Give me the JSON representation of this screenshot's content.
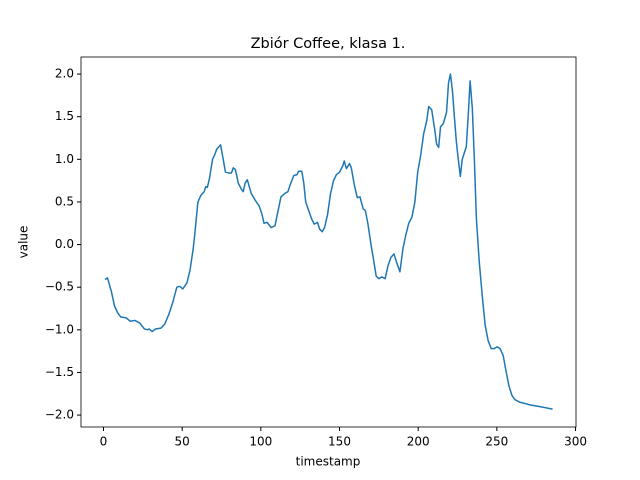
{
  "chart_data": {
    "type": "line",
    "title": "Zbiór Coffee, klasa 1.",
    "x_label": "timestamp",
    "y_label": "value",
    "x": [
      1,
      2.5,
      5,
      7,
      9,
      11,
      14.5,
      17,
      20,
      23,
      26,
      28,
      29,
      31,
      33,
      36.5,
      39,
      41.5,
      44,
      46.6,
      48.5,
      50.4,
      53,
      55,
      57,
      58,
      60,
      62,
      64,
      65,
      66,
      67.4,
      69.3,
      70.6,
      72,
      74.4,
      75.6,
      77.5,
      79.4,
      81.3,
      82.5,
      83.8,
      85.7,
      87.6,
      88.8,
      90,
      91.4,
      93.9,
      96.4,
      99,
      100.8,
      102,
      104,
      106.5,
      109,
      111,
      112.8,
      115.3,
      117.2,
      119,
      121,
      123,
      124,
      126,
      127.3,
      128.5,
      130.4,
      132.3,
      134,
      136,
      137.4,
      139,
      140.5,
      142.4,
      144.3,
      146.2,
      148,
      150,
      152,
      153,
      154.4,
      156.3,
      157.5,
      159.4,
      161.3,
      163,
      165,
      166.4,
      168,
      170,
      171.4,
      173.3,
      175,
      177,
      179,
      180.8,
      182.7,
      184.6,
      186.5,
      188.4,
      190.3,
      192,
      194,
      196,
      197.9,
      199.7,
      201.6,
      203.5,
      205.4,
      206.7,
      208.6,
      210.5,
      211.7,
      213,
      214.2,
      216,
      218,
      219.3,
      220.5,
      221.8,
      223,
      224.3,
      225.6,
      226.8,
      228,
      229.4,
      230.6,
      231.9,
      233,
      234.4,
      235.7,
      237,
      238.8,
      240.7,
      242.6,
      244.5,
      246.4,
      248.3,
      250.2,
      252,
      254,
      255.8,
      257.7,
      259.6,
      261.5,
      264.7,
      271,
      277,
      285.4
    ],
    "series": [
      {
        "color": "#1f77b4",
        "values": [
          -0.41,
          -0.39,
          -0.55,
          -0.72,
          -0.8,
          -0.85,
          -0.86,
          -0.9,
          -0.89,
          -0.92,
          -0.99,
          -1.0,
          -0.99,
          -1.02,
          -0.99,
          -0.98,
          -0.93,
          -0.82,
          -0.68,
          -0.5,
          -0.49,
          -0.52,
          -0.45,
          -0.3,
          -0.05,
          0.12,
          0.5,
          0.58,
          0.62,
          0.68,
          0.67,
          0.78,
          1.0,
          1.05,
          1.12,
          1.17,
          1.05,
          0.85,
          0.84,
          0.84,
          0.9,
          0.88,
          0.72,
          0.65,
          0.62,
          0.72,
          0.76,
          0.6,
          0.52,
          0.45,
          0.35,
          0.25,
          0.26,
          0.2,
          0.22,
          0.4,
          0.56,
          0.6,
          0.62,
          0.72,
          0.81,
          0.82,
          0.86,
          0.86,
          0.72,
          0.5,
          0.4,
          0.3,
          0.24,
          0.26,
          0.18,
          0.15,
          0.2,
          0.35,
          0.6,
          0.75,
          0.82,
          0.85,
          0.92,
          0.98,
          0.89,
          0.95,
          0.9,
          0.7,
          0.55,
          0.56,
          0.42,
          0.4,
          0.25,
          0.0,
          -0.15,
          -0.37,
          -0.4,
          -0.38,
          -0.4,
          -0.25,
          -0.15,
          -0.11,
          -0.22,
          -0.32,
          -0.05,
          0.1,
          0.25,
          0.32,
          0.5,
          0.85,
          1.05,
          1.3,
          1.45,
          1.62,
          1.58,
          1.35,
          1.18,
          1.14,
          1.38,
          1.42,
          1.55,
          1.9,
          2.0,
          1.8,
          1.5,
          1.2,
          0.98,
          0.8,
          1.0,
          1.08,
          1.15,
          1.55,
          1.92,
          1.6,
          1.0,
          0.3,
          -0.2,
          -0.6,
          -0.95,
          -1.13,
          -1.22,
          -1.22,
          -1.2,
          -1.22,
          -1.3,
          -1.48,
          -1.66,
          -1.77,
          -1.82,
          -1.85,
          -1.88,
          -1.9,
          -1.93
        ]
      }
    ],
    "xlim": [
      -14.3,
      300.3
    ],
    "ylim": [
      -2.14,
      2.2
    ],
    "xticks": [
      0,
      50,
      100,
      150,
      200,
      250,
      300
    ],
    "yticks": [
      {
        "value": -2,
        "label": "−2.0"
      },
      {
        "value": -1.5,
        "label": "−1.5"
      },
      {
        "value": -1,
        "label": "−1.0"
      },
      {
        "value": -0.5,
        "label": "−0.5"
      },
      {
        "value": 0,
        "label": "0.0"
      },
      {
        "value": 0.5,
        "label": "0.5"
      },
      {
        "value": 1,
        "label": "1.0"
      },
      {
        "value": 1.5,
        "label": "1.5"
      },
      {
        "value": 2,
        "label": "2.0"
      }
    ]
  }
}
